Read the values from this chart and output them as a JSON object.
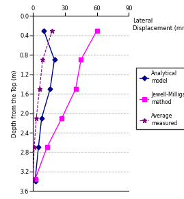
{
  "title_right": "Lateral\nDisplacement (mm)",
  "ylabel": "Depth from the Top (m)",
  "xlim": [
    0,
    90
  ],
  "ylim": [
    3.6,
    0
  ],
  "xticks": [
    0,
    30,
    60,
    90
  ],
  "yticks": [
    0,
    0.4,
    0.8,
    1.2,
    1.6,
    2.0,
    2.4,
    2.8,
    3.2,
    3.6
  ],
  "analytical_x": [
    10,
    20,
    16,
    8,
    5,
    2,
    2
  ],
  "analytical_y": [
    0.3,
    0.9,
    1.5,
    2.1,
    2.7,
    3.35,
    3.4
  ],
  "analytical_color": "#00008B",
  "analytical_label": "Analytical\nmodel",
  "jewell_x": [
    60,
    45,
    40,
    27,
    13,
    2
  ],
  "jewell_y": [
    0.3,
    0.9,
    1.5,
    2.1,
    2.7,
    3.35
  ],
  "jewell_color": "#FF00FF",
  "jewell_label": "Jewell-Milligan\nmethod",
  "average_x": [
    18,
    9,
    6,
    3,
    1,
    0
  ],
  "average_y": [
    0.3,
    0.9,
    1.5,
    2.1,
    2.7,
    3.35
  ],
  "average_color": "#800080",
  "average_label": "Average\nmeasured",
  "bg_color": "#FFFFFF",
  "grid_color": "#AAAAAA",
  "tick_fontsize": 6,
  "label_fontsize": 6,
  "legend_fontsize": 5.5
}
